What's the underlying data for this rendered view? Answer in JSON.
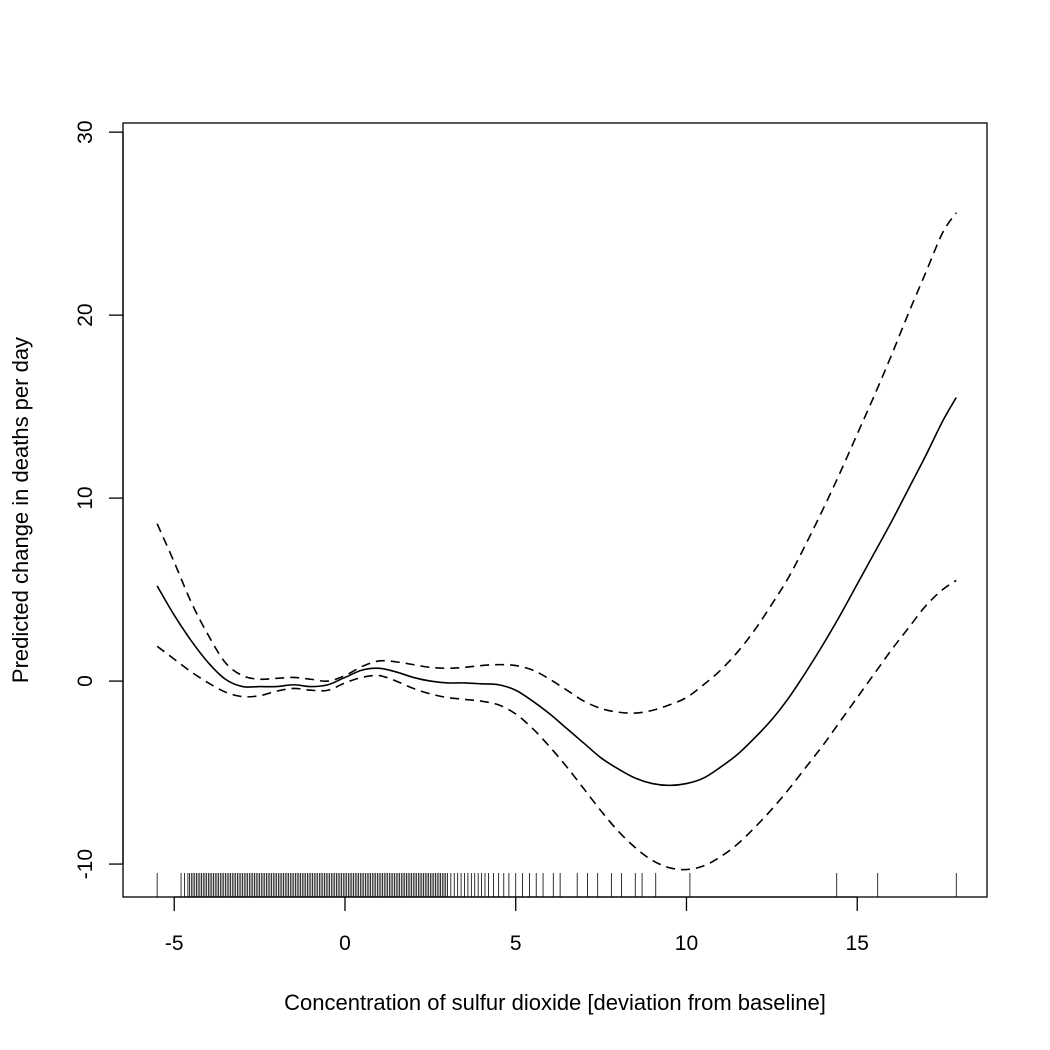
{
  "chart_data": {
    "type": "line",
    "title": "",
    "xlabel": "Concentration of sulfur dioxide [deviation from baseline]",
    "ylabel": "Predicted change in deaths per day",
    "xlim": [
      -6.5,
      18.8
    ],
    "ylim": [
      -11.8,
      30.5
    ],
    "x_ticks": [
      -5,
      0,
      5,
      10,
      15
    ],
    "y_ticks": [
      -10,
      0,
      10,
      20,
      30
    ],
    "grid": false,
    "legend": "none",
    "series": [
      {
        "role": "fit",
        "line_style": "solid",
        "color": "#000000",
        "x": [
          -5.5,
          -5.0,
          -4.5,
          -4.0,
          -3.5,
          -3.0,
          -2.5,
          -2.0,
          -1.5,
          -1.0,
          -0.5,
          0.0,
          0.5,
          1.0,
          1.5,
          2.0,
          2.5,
          3.0,
          3.5,
          4.0,
          4.5,
          5.0,
          5.5,
          6.0,
          6.5,
          7.0,
          7.5,
          8.0,
          8.5,
          9.0,
          9.5,
          10.0,
          10.5,
          11.0,
          11.5,
          12.0,
          12.5,
          13.0,
          13.5,
          14.0,
          14.5,
          15.0,
          15.5,
          16.0,
          16.5,
          17.0,
          17.5,
          17.9
        ],
        "y": [
          5.2,
          3.6,
          2.2,
          1.0,
          0.1,
          -0.3,
          -0.3,
          -0.3,
          -0.2,
          -0.3,
          -0.2,
          0.2,
          0.6,
          0.7,
          0.5,
          0.2,
          0.0,
          -0.1,
          -0.1,
          -0.15,
          -0.2,
          -0.5,
          -1.1,
          -1.8,
          -2.6,
          -3.4,
          -4.2,
          -4.8,
          -5.3,
          -5.6,
          -5.7,
          -5.6,
          -5.3,
          -4.7,
          -4.0,
          -3.1,
          -2.1,
          -0.9,
          0.5,
          2.0,
          3.6,
          5.3,
          7.0,
          8.7,
          10.5,
          12.3,
          14.2,
          15.5
        ]
      },
      {
        "role": "upper-bound",
        "line_style": "dashed",
        "color": "#000000",
        "x": [
          -5.5,
          -5.0,
          -4.5,
          -4.0,
          -3.5,
          -3.0,
          -2.5,
          -2.0,
          -1.5,
          -1.0,
          -0.5,
          0.0,
          0.5,
          1.0,
          1.5,
          2.0,
          2.5,
          3.0,
          3.5,
          4.0,
          4.5,
          5.0,
          5.5,
          6.0,
          6.5,
          7.0,
          7.5,
          8.0,
          8.5,
          9.0,
          9.5,
          10.0,
          10.5,
          11.0,
          11.5,
          12.0,
          12.5,
          13.0,
          13.5,
          14.0,
          14.5,
          15.0,
          15.5,
          16.0,
          16.5,
          17.0,
          17.5,
          17.9
        ],
        "y": [
          8.6,
          6.5,
          4.3,
          2.5,
          1.0,
          0.3,
          0.1,
          0.15,
          0.2,
          0.1,
          0.0,
          0.3,
          0.8,
          1.1,
          1.05,
          0.9,
          0.75,
          0.7,
          0.75,
          0.85,
          0.9,
          0.85,
          0.6,
          0.1,
          -0.5,
          -1.1,
          -1.5,
          -1.7,
          -1.75,
          -1.6,
          -1.3,
          -0.9,
          -0.2,
          0.6,
          1.6,
          2.8,
          4.2,
          5.7,
          7.5,
          9.4,
          11.4,
          13.5,
          15.6,
          17.8,
          20.1,
          22.3,
          24.5,
          25.6
        ]
      },
      {
        "role": "lower-bound",
        "line_style": "dashed",
        "color": "#000000",
        "x": [
          -5.5,
          -5.0,
          -4.5,
          -4.0,
          -3.5,
          -3.0,
          -2.5,
          -2.0,
          -1.5,
          -1.0,
          -0.5,
          0.0,
          0.5,
          1.0,
          1.5,
          2.0,
          2.5,
          3.0,
          3.5,
          4.0,
          4.5,
          5.0,
          5.5,
          6.0,
          6.5,
          7.0,
          7.5,
          8.0,
          8.5,
          9.0,
          9.5,
          10.0,
          10.5,
          11.0,
          11.5,
          12.0,
          12.5,
          13.0,
          13.5,
          14.0,
          14.5,
          15.0,
          15.5,
          16.0,
          16.5,
          17.0,
          17.5,
          17.9
        ],
        "y": [
          1.9,
          1.2,
          0.5,
          -0.1,
          -0.6,
          -0.85,
          -0.8,
          -0.55,
          -0.4,
          -0.5,
          -0.5,
          -0.1,
          0.2,
          0.3,
          0.0,
          -0.4,
          -0.7,
          -0.9,
          -1.0,
          -1.1,
          -1.3,
          -1.8,
          -2.6,
          -3.6,
          -4.7,
          -5.9,
          -7.1,
          -8.2,
          -9.1,
          -9.8,
          -10.2,
          -10.3,
          -10.1,
          -9.6,
          -8.9,
          -8.0,
          -7.0,
          -5.9,
          -4.7,
          -3.5,
          -2.2,
          -0.9,
          0.4,
          1.7,
          2.9,
          4.1,
          5.0,
          5.5
        ]
      }
    ],
    "rug": [
      -5.5,
      -4.8,
      -4.7,
      -4.6,
      -4.55,
      -4.5,
      -4.45,
      -4.4,
      -4.35,
      -4.3,
      -4.25,
      -4.2,
      -4.15,
      -4.1,
      -4.05,
      -4.0,
      -3.95,
      -3.9,
      -3.85,
      -3.8,
      -3.75,
      -3.7,
      -3.65,
      -3.6,
      -3.55,
      -3.5,
      -3.45,
      -3.4,
      -3.35,
      -3.3,
      -3.25,
      -3.2,
      -3.15,
      -3.1,
      -3.05,
      -3.0,
      -2.95,
      -2.9,
      -2.85,
      -2.8,
      -2.75,
      -2.7,
      -2.65,
      -2.6,
      -2.55,
      -2.5,
      -2.45,
      -2.4,
      -2.35,
      -2.3,
      -2.25,
      -2.2,
      -2.15,
      -2.1,
      -2.05,
      -2.0,
      -1.95,
      -1.9,
      -1.85,
      -1.8,
      -1.75,
      -1.7,
      -1.65,
      -1.6,
      -1.55,
      -1.5,
      -1.45,
      -1.4,
      -1.35,
      -1.3,
      -1.25,
      -1.2,
      -1.15,
      -1.1,
      -1.05,
      -1.0,
      -0.95,
      -0.9,
      -0.85,
      -0.8,
      -0.75,
      -0.7,
      -0.65,
      -0.6,
      -0.55,
      -0.5,
      -0.45,
      -0.4,
      -0.35,
      -0.3,
      -0.25,
      -0.2,
      -0.15,
      -0.1,
      -0.05,
      0.0,
      0.05,
      0.1,
      0.15,
      0.2,
      0.25,
      0.3,
      0.35,
      0.4,
      0.45,
      0.5,
      0.55,
      0.6,
      0.65,
      0.7,
      0.75,
      0.8,
      0.85,
      0.9,
      0.95,
      1.0,
      1.05,
      1.1,
      1.15,
      1.2,
      1.25,
      1.3,
      1.35,
      1.4,
      1.45,
      1.5,
      1.55,
      1.6,
      1.65,
      1.7,
      1.75,
      1.8,
      1.85,
      1.9,
      1.95,
      2.0,
      2.05,
      2.1,
      2.15,
      2.2,
      2.25,
      2.3,
      2.35,
      2.4,
      2.45,
      2.5,
      2.55,
      2.6,
      2.65,
      2.7,
      2.75,
      2.8,
      2.85,
      2.9,
      2.95,
      3.0,
      3.1,
      3.2,
      3.3,
      3.4,
      3.5,
      3.6,
      3.7,
      3.8,
      3.9,
      4.0,
      4.1,
      4.2,
      4.35,
      4.5,
      4.65,
      4.8,
      5.0,
      5.2,
      5.4,
      5.6,
      5.8,
      6.1,
      6.3,
      6.8,
      7.1,
      7.4,
      7.8,
      8.1,
      8.5,
      8.7,
      9.1,
      10.1,
      14.4,
      15.6,
      17.9
    ]
  }
}
